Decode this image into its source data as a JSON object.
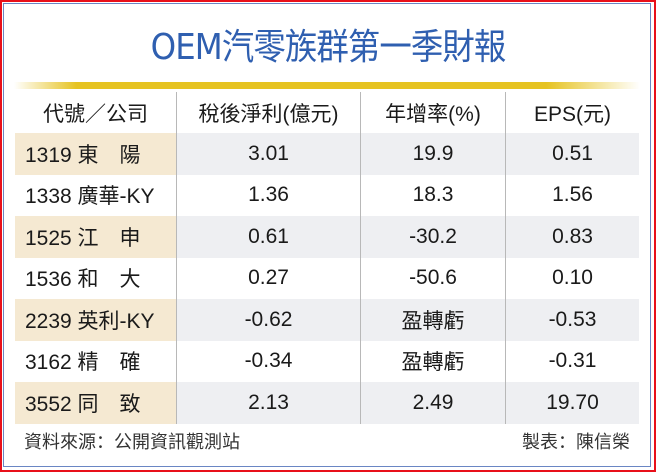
{
  "title": "OEM汽零族群第一季財報",
  "colors": {
    "title": "#2f5fb0",
    "rule": "#e6c321",
    "outer_border": "#e8101a",
    "inner_border": "#6a86c4",
    "code_shade": "#f5e9d2",
    "value_shade": "#eeeff2"
  },
  "table": {
    "headers": [
      "代號／公司",
      "稅後淨利(億元)",
      "年增率(%)",
      "EPS(元)"
    ],
    "rows": [
      {
        "company": "1319 東　陽",
        "net_income": "3.01",
        "yoy": "19.9",
        "eps": "0.51"
      },
      {
        "company": "1338 廣華-KY",
        "net_income": "1.36",
        "yoy": "18.3",
        "eps": "1.56"
      },
      {
        "company": "1525 江　申",
        "net_income": "0.61",
        "yoy": "-30.2",
        "eps": "0.83"
      },
      {
        "company": "1536 和　大",
        "net_income": "0.27",
        "yoy": "-50.6",
        "eps": "0.10"
      },
      {
        "company": "2239 英利-KY",
        "net_income": "-0.62",
        "yoy": "盈轉虧",
        "eps": "-0.53"
      },
      {
        "company": "3162 精　確",
        "net_income": "-0.34",
        "yoy": "盈轉虧",
        "eps": "-0.31"
      },
      {
        "company": "3552 同　致",
        "net_income": "2.13",
        "yoy": "2.49",
        "eps": "19.70"
      }
    ]
  },
  "footer": {
    "source": "資料來源：公開資訊觀測站",
    "author": "製表：陳信榮"
  }
}
